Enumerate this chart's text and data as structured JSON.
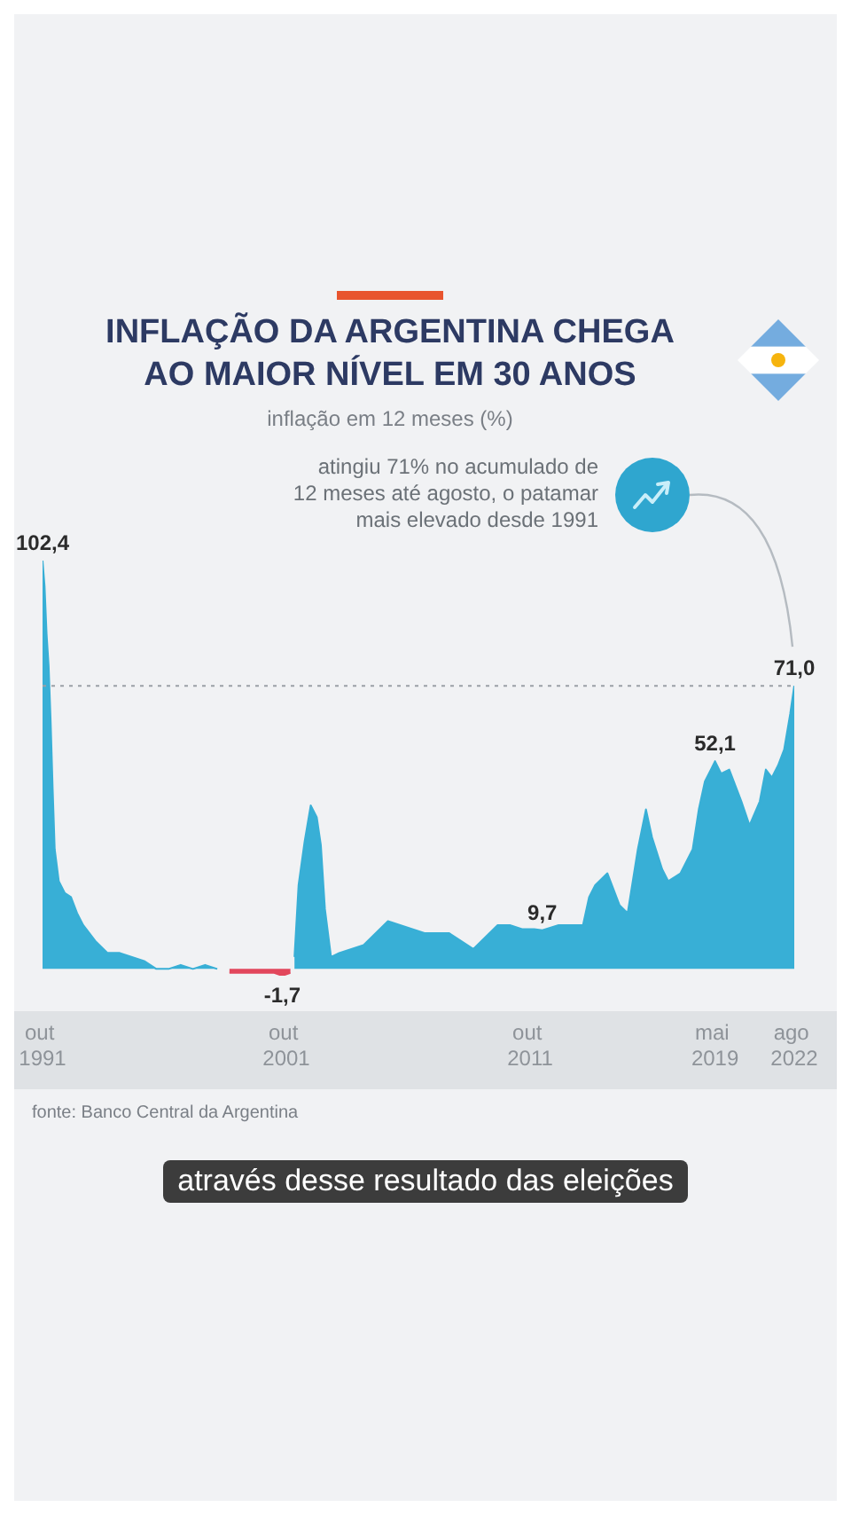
{
  "chart_data": {
    "type": "area",
    "title": "INFLAÇÃO DA ARGENTINA CHEGA AO MAIOR NÍVEL EM 30 ANOS",
    "subtitle": "inflação em 12 meses (%)",
    "x": [
      "1991-10",
      "1991-11",
      "1991-12",
      "1992-01",
      "1992-02",
      "1992-03",
      "1992-04",
      "1992-06",
      "1992-09",
      "1992-12",
      "1993-03",
      "1993-06",
      "1993-09",
      "1993-12",
      "1994-06",
      "1994-12",
      "1995-06",
      "1995-12",
      "1996-06",
      "1996-12",
      "1997-06",
      "1997-12",
      "1998-06",
      "1998-12",
      "1999-06",
      "1999-12",
      "2000-06",
      "2000-12",
      "2001-04",
      "2001-08",
      "2001-12",
      "2002-02",
      "2002-04",
      "2002-07",
      "2002-10",
      "2003-01",
      "2003-03",
      "2003-05",
      "2003-08",
      "2003-12",
      "2004-06",
      "2004-12",
      "2005-06",
      "2005-12",
      "2006-06",
      "2006-12",
      "2007-06",
      "2007-12",
      "2008-06",
      "2008-12",
      "2009-06",
      "2009-12",
      "2010-06",
      "2010-12",
      "2011-06",
      "2011-12",
      "2012-04",
      "2012-12",
      "2013-06",
      "2013-12",
      "2014-03",
      "2014-06",
      "2014-12",
      "2015-06",
      "2015-10",
      "2016-03",
      "2016-07",
      "2016-10",
      "2017-03",
      "2017-06",
      "2017-12",
      "2018-06",
      "2018-09",
      "2018-12",
      "2019-03",
      "2019-05",
      "2019-08",
      "2019-12",
      "2020-03",
      "2020-06",
      "2020-10",
      "2021-03",
      "2021-06",
      "2021-09",
      "2021-12",
      "2022-03",
      "2022-06",
      "2022-08"
    ],
    "series": [
      {
        "color": "#38afd6",
        "values": [
          102.4,
          96,
          84,
          76,
          62,
          45,
          30,
          22,
          19,
          18,
          14,
          11,
          9,
          7,
          4,
          4,
          3,
          2,
          0,
          0,
          1,
          0,
          1,
          0,
          null,
          null,
          null,
          null,
          null,
          null,
          null,
          3,
          21,
          32,
          41,
          38,
          31,
          15,
          3,
          4,
          5,
          6,
          9,
          12,
          11,
          10,
          9,
          9,
          9,
          7,
          5,
          8,
          11,
          11,
          10,
          10,
          9.7,
          11,
          11,
          11,
          18,
          21,
          24,
          16,
          14,
          30,
          40,
          33,
          25,
          22,
          24,
          30,
          40,
          47,
          50,
          52.1,
          49,
          50,
          46,
          42,
          36,
          42,
          50,
          48,
          51,
          55,
          64,
          71.0
        ],
        "value_labels": [
          "102,4",
          null,
          null,
          null,
          null,
          null,
          null,
          null,
          null,
          null,
          null,
          null,
          null,
          null,
          null,
          null,
          null,
          null,
          null,
          null,
          null,
          null,
          null,
          null,
          null,
          null,
          null,
          null,
          null,
          null,
          null,
          null,
          null,
          null,
          null,
          null,
          null,
          null,
          null,
          null,
          null,
          null,
          null,
          null,
          null,
          null,
          null,
          null,
          null,
          null,
          null,
          null,
          null,
          null,
          null,
          null,
          "9,7",
          null,
          null,
          null,
          null,
          null,
          null,
          null,
          null,
          null,
          null,
          null,
          null,
          null,
          null,
          null,
          null,
          null,
          null,
          "52,1",
          null,
          null,
          null,
          null,
          null,
          null,
          null,
          null,
          null,
          null,
          null,
          "71,0"
        ]
      },
      {
        "color": "#e2475c",
        "values": [
          null,
          null,
          null,
          null,
          null,
          null,
          null,
          null,
          null,
          null,
          null,
          null,
          null,
          null,
          null,
          null,
          null,
          null,
          null,
          null,
          null,
          null,
          null,
          null,
          -1,
          -1,
          -1,
          -1,
          -1,
          -1.7,
          -1,
          null,
          null,
          null,
          null,
          null,
          null,
          null,
          null,
          null,
          null,
          null,
          null,
          null,
          null,
          null,
          null,
          null,
          null,
          null,
          null,
          null,
          null,
          null,
          null,
          null,
          null,
          null,
          null,
          null,
          null,
          null,
          null,
          null,
          null,
          null,
          null,
          null,
          null,
          null,
          null,
          null,
          null,
          null,
          null,
          null,
          null,
          null,
          null,
          null,
          null,
          null,
          null,
          null,
          null,
          null,
          null,
          null
        ],
        "value_labels": [
          null,
          null,
          null,
          null,
          null,
          null,
          null,
          null,
          null,
          null,
          null,
          null,
          null,
          null,
          null,
          null,
          null,
          null,
          null,
          null,
          null,
          null,
          null,
          null,
          null,
          null,
          null,
          null,
          null,
          "-1,7",
          null,
          null,
          null,
          null,
          null,
          null,
          null,
          null,
          null,
          null,
          null,
          null,
          null,
          null,
          null,
          null,
          null,
          null,
          null,
          null,
          null,
          null,
          null,
          null,
          null,
          null,
          null,
          null,
          null,
          null,
          null,
          null,
          null,
          null,
          null,
          null,
          null,
          null,
          null,
          null,
          null,
          null,
          null,
          null,
          null,
          null,
          null,
          null,
          null,
          null,
          null,
          null,
          null,
          null,
          null,
          null,
          null,
          null
        ]
      }
    ],
    "xlim": [
      "1991-10",
      "2022-08"
    ],
    "xticks": [
      {
        "value": "1991-10",
        "label": "out 1991"
      },
      {
        "value": "2001-10",
        "label": "out 2001"
      },
      {
        "value": "2011-10",
        "label": "out 2011"
      },
      {
        "value": "2019-05",
        "label": "mai 2019"
      },
      {
        "value": "2022-08",
        "label": "ago 2022"
      }
    ],
    "tick_labels": "x",
    "ref_lines": [
      {
        "axis": "y",
        "value": 71.0,
        "line_style": "dotted",
        "color": "#9aa0a6"
      }
    ],
    "annotations": [
      "atingiu 71% no acumulado de 12 meses até agosto, o patamar mais elevado desde 1991",
      "fonte: Banco Central da Argentina",
      "através desse resultado das eleições"
    ]
  }
}
